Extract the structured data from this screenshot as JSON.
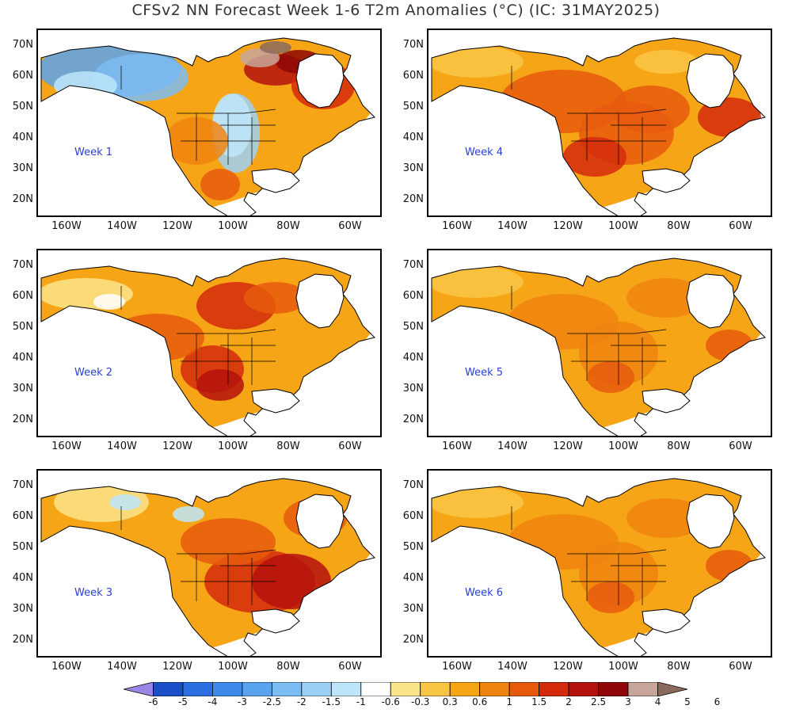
{
  "title": "CFSv2 NN Forecast Week 1-6 T2m Anomalies (°C) (IC: 31MAY2025)",
  "panels": [
    {
      "label": "Week 1",
      "pattern": "w1"
    },
    {
      "label": "Week 4",
      "pattern": "warm-strong"
    },
    {
      "label": "Week 2",
      "pattern": "w2"
    },
    {
      "label": "Week 5",
      "pattern": "warm"
    },
    {
      "label": "Week 3",
      "pattern": "w3"
    },
    {
      "label": "Week 6",
      "pattern": "warm"
    }
  ],
  "lat_labels": [
    "70N",
    "60N",
    "50N",
    "40N",
    "30N",
    "20N"
  ],
  "lon_labels": [
    "160W",
    "140W",
    "120W",
    "100W",
    "80W",
    "60W"
  ],
  "colorbar": {
    "colors": [
      "#9b86e8",
      "#1b4fc8",
      "#2a6ee0",
      "#3d8ae8",
      "#5aa3ee",
      "#7bbcf2",
      "#9dd0f6",
      "#bde6fa",
      "#ffffff",
      "#fbe38a",
      "#f9c545",
      "#f6a516",
      "#f08410",
      "#e65a0e",
      "#d32a0c",
      "#b4120e",
      "#8e0606",
      "#c8a59b",
      "#8a6a5e"
    ],
    "labels": [
      "-6",
      "-5",
      "-4",
      "-3",
      "-2.5",
      "-2",
      "-1.5",
      "-1",
      "-0.6",
      "-0.3",
      "0.3",
      "0.6",
      "1",
      "1.5",
      "2",
      "2.5",
      "3",
      "4",
      "5",
      "6"
    ]
  }
}
